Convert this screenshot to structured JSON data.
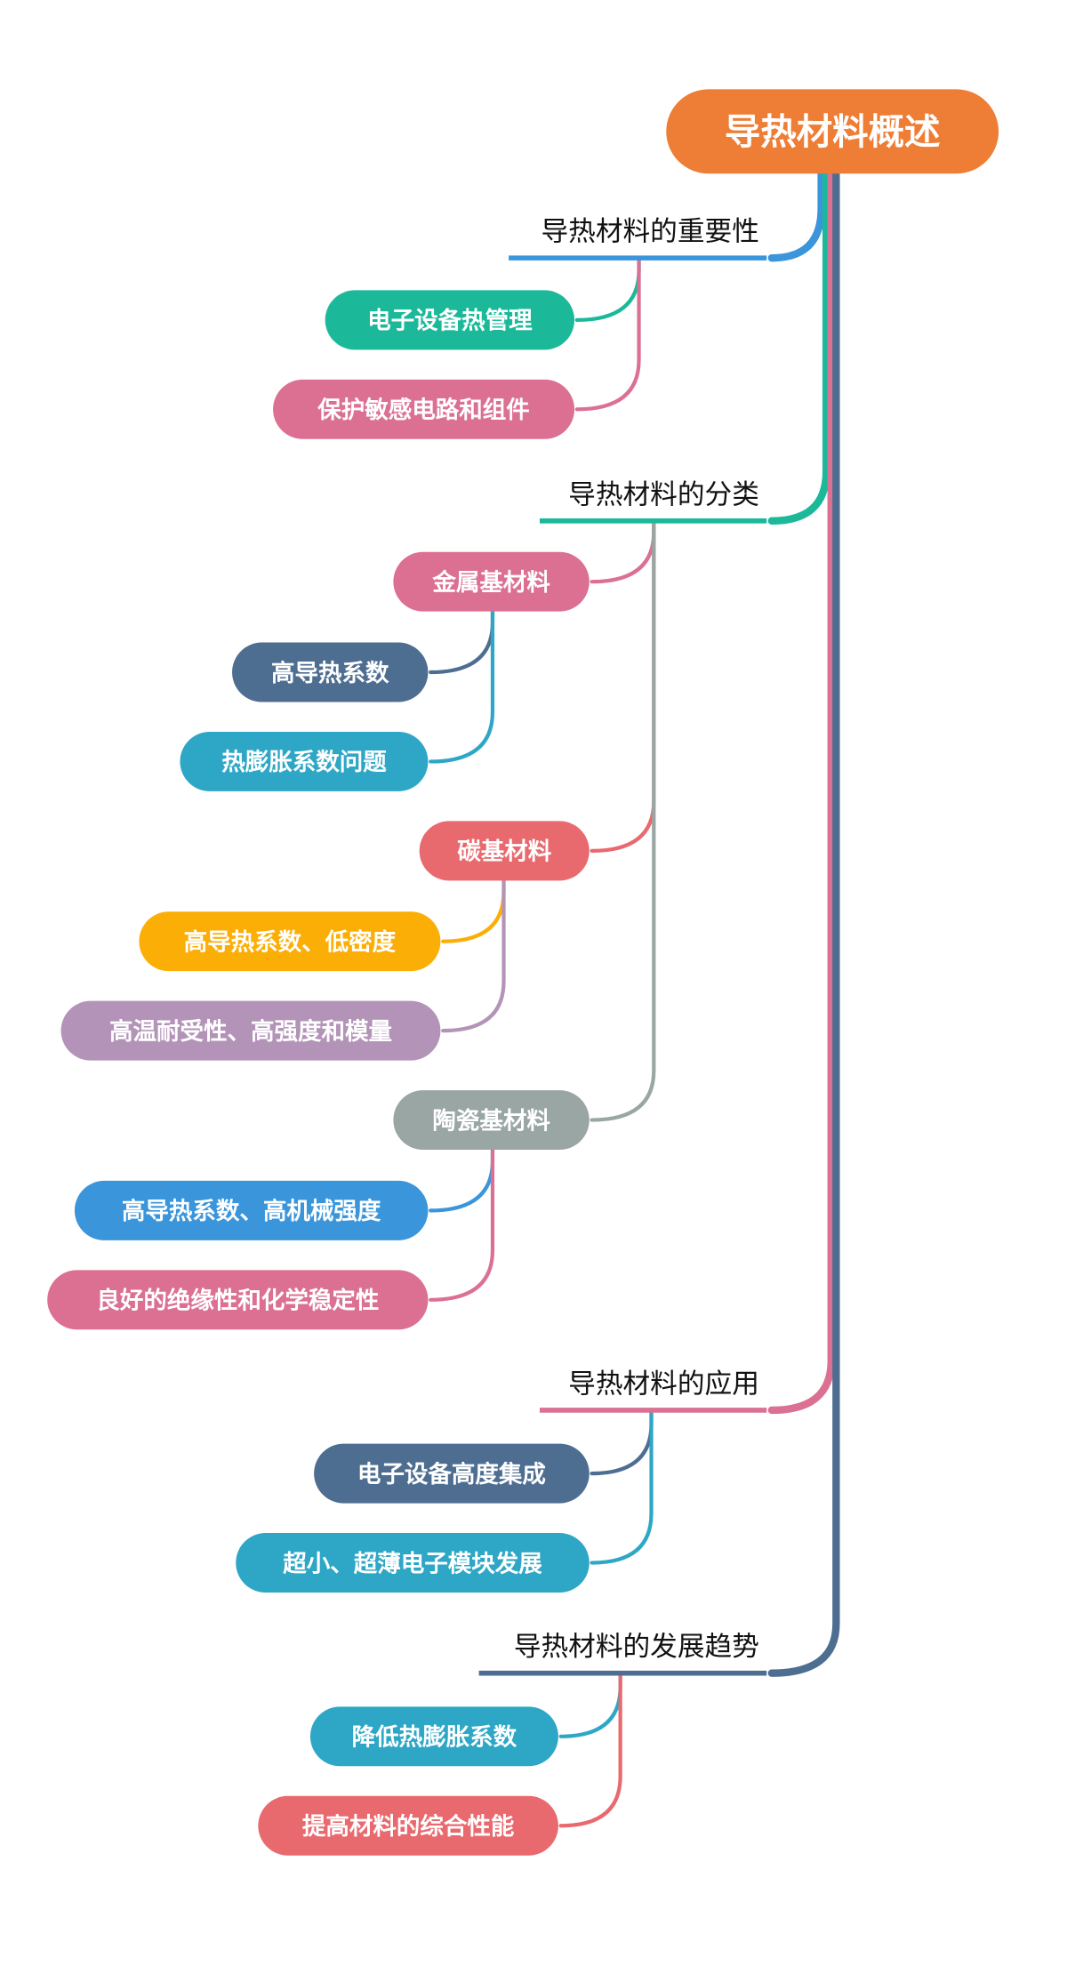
{
  "root": {
    "label": "导热材料概述",
    "color": "#EE7D35"
  },
  "branches": [
    {
      "label": "导热材料的重要性",
      "color": "#3A95DB",
      "children": [
        {
          "label": "电子设备热管理",
          "color": "#1BB99A"
        },
        {
          "label": "保护敏感电路和组件",
          "color": "#DB7093"
        }
      ]
    },
    {
      "label": "导热材料的分类",
      "color": "#1BB99A",
      "children": [
        {
          "label": "金属基材料",
          "color": "#DB7093",
          "children": [
            {
              "label": "高导热系数",
              "color": "#4E6E91"
            },
            {
              "label": "热膨胀系数问题",
              "color": "#2EA7C6"
            }
          ]
        },
        {
          "label": "碳基材料",
          "color": "#E86A6F",
          "children": [
            {
              "label": "高导热系数、低密度",
              "color": "#FBAE06"
            },
            {
              "label": "高温耐受性、高强度和模量",
              "color": "#B394B8"
            }
          ]
        },
        {
          "label": "陶瓷基材料",
          "color": "#99A6A4",
          "children": [
            {
              "label": "高导热系数、高机械强度",
              "color": "#3A95DB"
            },
            {
              "label": "良好的绝缘性和化学稳定性",
              "color": "#DB7093"
            }
          ]
        }
      ]
    },
    {
      "label": "导热材料的应用",
      "color": "#DB7093",
      "children": [
        {
          "label": "电子设备高度集成",
          "color": "#4E6E91"
        },
        {
          "label": "超小、超薄电子模块发展",
          "color": "#2EA7C6"
        }
      ]
    },
    {
      "label": "导热材料的发展趋势",
      "color": "#4E6E91",
      "children": [
        {
          "label": "降低热膨胀系数",
          "color": "#2EA7C6"
        },
        {
          "label": "提高材料的综合性能",
          "color": "#E86A6F"
        }
      ]
    }
  ]
}
